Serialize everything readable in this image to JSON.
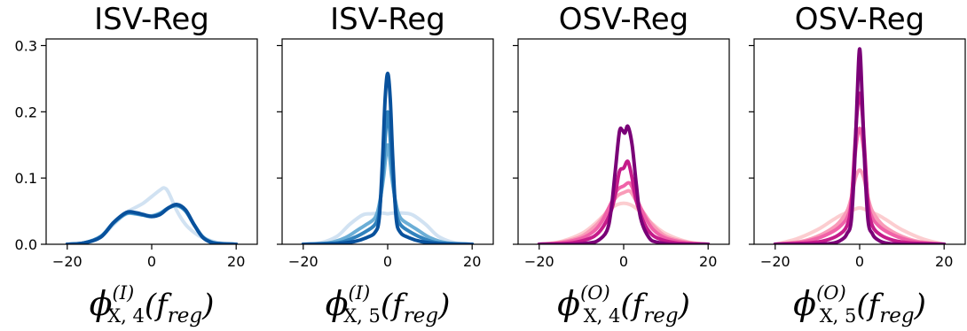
{
  "chart_data": [
    {
      "type": "line",
      "title": "ISV-Reg",
      "xlabel": {
        "main": "ϕ",
        "sup": "(I)",
        "sub": "X, 4",
        "arg_open": "(f",
        "arg_sub": "reg",
        "arg_close": ")"
      },
      "xlim": [
        -25,
        25
      ],
      "ylim": [
        0,
        0.31
      ],
      "xticks": [
        -20,
        0,
        20
      ],
      "yticks": [
        0.0,
        0.1,
        0.2,
        0.3
      ],
      "ytick_labels": [
        "0.0",
        "0.1",
        "0.2",
        "0.3"
      ],
      "series": [
        {
          "color": "#c6dbef",
          "opacity": 0.8,
          "x": [
            -20,
            -16,
            -12,
            -9,
            -6,
            -4,
            -2,
            0,
            2,
            3,
            4,
            6,
            8,
            10,
            12,
            16,
            20
          ],
          "y": [
            0.0,
            0.002,
            0.012,
            0.03,
            0.048,
            0.055,
            0.062,
            0.072,
            0.082,
            0.085,
            0.078,
            0.05,
            0.03,
            0.018,
            0.01,
            0.002,
            0.0
          ]
        },
        {
          "color": "#6baed6",
          "opacity": 1,
          "x": [
            -20,
            -16,
            -12,
            -9,
            -6,
            -4,
            -2,
            0,
            2,
            4,
            6,
            8,
            10,
            12,
            14,
            16,
            20
          ],
          "y": [
            0.0,
            0.002,
            0.012,
            0.032,
            0.046,
            0.046,
            0.044,
            0.043,
            0.047,
            0.055,
            0.058,
            0.05,
            0.03,
            0.012,
            0.004,
            0.001,
            0.0
          ]
        },
        {
          "color": "#3182bd",
          "opacity": 1,
          "x": [
            -20,
            -16,
            -12,
            -9,
            -6,
            -4,
            -2,
            0,
            2,
            4,
            6,
            8,
            10,
            12,
            14,
            16,
            20
          ],
          "y": [
            0.0,
            0.002,
            0.012,
            0.033,
            0.047,
            0.047,
            0.044,
            0.042,
            0.046,
            0.055,
            0.059,
            0.051,
            0.03,
            0.011,
            0.003,
            0.001,
            0.0
          ]
        },
        {
          "color": "#08519c",
          "opacity": 1,
          "x": [
            -20,
            -16,
            -12,
            -9,
            -6,
            -4,
            -2,
            0,
            2,
            4,
            6,
            8,
            10,
            12,
            14,
            16,
            20
          ],
          "y": [
            0.0,
            0.002,
            0.011,
            0.033,
            0.048,
            0.048,
            0.045,
            0.042,
            0.045,
            0.055,
            0.06,
            0.052,
            0.03,
            0.011,
            0.003,
            0.001,
            0.0
          ]
        }
      ]
    },
    {
      "type": "line",
      "title": "ISV-Reg",
      "xlabel": {
        "main": "ϕ",
        "sup": "(I)",
        "sub": "X, 5",
        "arg_open": "(f",
        "arg_sub": "reg",
        "arg_close": ")"
      },
      "xlim": [
        -25,
        25
      ],
      "ylim": [
        0,
        0.31
      ],
      "xticks": [
        -20,
        0,
        20
      ],
      "yticks": [
        0.0,
        0.1,
        0.2,
        0.3
      ],
      "ytick_labels": [
        "",
        "",
        "",
        ""
      ],
      "series": [
        {
          "color": "#c6dbef",
          "opacity": 0.8,
          "x": [
            -20,
            -16,
            -12,
            -9,
            -6,
            -4,
            -2,
            -1,
            0,
            1,
            2,
            4,
            6,
            9,
            12,
            16,
            20
          ],
          "y": [
            0.0,
            0.002,
            0.012,
            0.03,
            0.044,
            0.046,
            0.047,
            0.047,
            0.046,
            0.047,
            0.047,
            0.047,
            0.044,
            0.03,
            0.012,
            0.002,
            0.0
          ]
        },
        {
          "color": "#6baed6",
          "opacity": 1,
          "x": [
            -20,
            -14,
            -10,
            -7,
            -5,
            -3,
            -2,
            -1,
            -0.5,
            0,
            0.5,
            1,
            2,
            3,
            5,
            7,
            10,
            14,
            20
          ],
          "y": [
            0.0,
            0.002,
            0.01,
            0.022,
            0.03,
            0.04,
            0.06,
            0.1,
            0.13,
            0.15,
            0.13,
            0.1,
            0.06,
            0.04,
            0.03,
            0.022,
            0.01,
            0.002,
            0.0
          ]
        },
        {
          "color": "#3182bd",
          "opacity": 1,
          "x": [
            -20,
            -12,
            -8,
            -5,
            -3,
            -2,
            -1,
            -0.5,
            0,
            0.5,
            1,
            2,
            3,
            5,
            8,
            12,
            20
          ],
          "y": [
            0.0,
            0.002,
            0.01,
            0.02,
            0.03,
            0.05,
            0.12,
            0.17,
            0.2,
            0.17,
            0.12,
            0.05,
            0.03,
            0.02,
            0.01,
            0.002,
            0.0
          ]
        },
        {
          "color": "#08519c",
          "opacity": 1,
          "x": [
            -20,
            -12,
            -8,
            -5,
            -3,
            -2,
            -1.2,
            -0.6,
            0,
            0.6,
            1.2,
            2,
            3,
            5,
            8,
            12,
            20
          ],
          "y": [
            0.0,
            0.001,
            0.004,
            0.01,
            0.018,
            0.04,
            0.13,
            0.22,
            0.258,
            0.22,
            0.13,
            0.04,
            0.018,
            0.01,
            0.004,
            0.001,
            0.0
          ]
        }
      ]
    },
    {
      "type": "line",
      "title": "OSV-Reg",
      "xlabel": {
        "main": "ϕ",
        "sup": "(O)",
        "sub": "X, 4",
        "arg_open": "(f",
        "arg_sub": "reg",
        "arg_close": ")"
      },
      "xlim": [
        -25,
        25
      ],
      "ylim": [
        0,
        0.31
      ],
      "xticks": [
        -20,
        0,
        20
      ],
      "yticks": [
        0.0,
        0.1,
        0.2,
        0.3
      ],
      "ytick_labels": [
        "",
        "",
        "",
        ""
      ],
      "series": [
        {
          "color": "#fbc4c8",
          "opacity": 0.85,
          "x": [
            -20,
            -15,
            -10,
            -7,
            -5,
            -3,
            -1.5,
            0,
            1.5,
            3,
            5,
            7,
            10,
            15,
            20
          ],
          "y": [
            0.0,
            0.004,
            0.016,
            0.03,
            0.042,
            0.054,
            0.06,
            0.062,
            0.06,
            0.054,
            0.042,
            0.03,
            0.016,
            0.004,
            0.0
          ]
        },
        {
          "color": "#f99bb8",
          "opacity": 1,
          "x": [
            -20,
            -15,
            -10,
            -7,
            -5,
            -3,
            -1.5,
            0,
            1.5,
            3,
            5,
            7,
            10,
            15,
            20
          ],
          "y": [
            0.0,
            0.003,
            0.012,
            0.026,
            0.04,
            0.06,
            0.073,
            0.078,
            0.08,
            0.065,
            0.045,
            0.028,
            0.012,
            0.003,
            0.0
          ]
        },
        {
          "color": "#f062a8",
          "opacity": 1,
          "x": [
            -20,
            -15,
            -10,
            -7,
            -5,
            -3,
            -1.5,
            0,
            1.5,
            3,
            5,
            7,
            10,
            15,
            20
          ],
          "y": [
            0.0,
            0.002,
            0.009,
            0.02,
            0.036,
            0.062,
            0.082,
            0.088,
            0.092,
            0.07,
            0.042,
            0.022,
            0.009,
            0.002,
            0.0
          ]
        },
        {
          "color": "#c51b8a",
          "opacity": 1,
          "x": [
            -20,
            -14,
            -10,
            -7,
            -5,
            -3,
            -2,
            -1,
            0,
            1,
            2,
            3,
            5,
            7,
            10,
            14,
            20
          ],
          "y": [
            0.0,
            0.001,
            0.005,
            0.012,
            0.025,
            0.05,
            0.075,
            0.11,
            0.115,
            0.125,
            0.1,
            0.065,
            0.03,
            0.013,
            0.005,
            0.001,
            0.0
          ]
        },
        {
          "color": "#7a0177",
          "opacity": 1,
          "x": [
            -20,
            -12,
            -8,
            -6,
            -4,
            -3,
            -2,
            -1,
            -0.3,
            0.3,
            1,
            2,
            3,
            4,
            6,
            8,
            12,
            20
          ],
          "y": [
            0.0,
            0.0,
            0.002,
            0.006,
            0.02,
            0.05,
            0.11,
            0.17,
            0.172,
            0.168,
            0.178,
            0.15,
            0.09,
            0.04,
            0.01,
            0.003,
            0.0,
            0.0
          ]
        }
      ]
    },
    {
      "type": "line",
      "title": "OSV-Reg",
      "xlabel": {
        "main": "ϕ",
        "sup": "(O)",
        "sub": "X, 5",
        "arg_open": "(f",
        "arg_sub": "reg",
        "arg_close": ")"
      },
      "xlim": [
        -25,
        25
      ],
      "ylim": [
        0,
        0.31
      ],
      "xticks": [
        -20,
        0,
        20
      ],
      "yticks": [
        0.0,
        0.1,
        0.2,
        0.3
      ],
      "ytick_labels": [
        "",
        "",
        "",
        ""
      ],
      "series": [
        {
          "color": "#fbc4c8",
          "opacity": 0.85,
          "x": [
            -20,
            -15,
            -10,
            -7,
            -5,
            -3,
            -1.5,
            0,
            1.5,
            3,
            5,
            7,
            10,
            15,
            20
          ],
          "y": [
            0.0,
            0.008,
            0.022,
            0.034,
            0.042,
            0.048,
            0.052,
            0.055,
            0.052,
            0.048,
            0.042,
            0.034,
            0.022,
            0.008,
            0.0
          ]
        },
        {
          "color": "#f99bb8",
          "opacity": 1,
          "x": [
            -20,
            -14,
            -10,
            -7,
            -5,
            -3,
            -2,
            -1,
            0,
            1,
            2,
            3,
            5,
            7,
            10,
            14,
            20
          ],
          "y": [
            0.0,
            0.004,
            0.012,
            0.022,
            0.032,
            0.05,
            0.07,
            0.1,
            0.112,
            0.1,
            0.07,
            0.05,
            0.032,
            0.022,
            0.012,
            0.004,
            0.0
          ]
        },
        {
          "color": "#f062a8",
          "opacity": 1,
          "x": [
            -20,
            -14,
            -10,
            -7,
            -5,
            -3,
            -2,
            -1,
            0,
            1,
            2,
            3,
            5,
            7,
            10,
            14,
            20
          ],
          "y": [
            0.0,
            0.003,
            0.009,
            0.017,
            0.025,
            0.04,
            0.065,
            0.14,
            0.175,
            0.14,
            0.065,
            0.04,
            0.025,
            0.017,
            0.009,
            0.003,
            0.0
          ]
        },
        {
          "color": "#c51b8a",
          "opacity": 1,
          "x": [
            -20,
            -12,
            -8,
            -5,
            -3,
            -2,
            -1.2,
            -0.6,
            0,
            0.6,
            1.2,
            2,
            3,
            5,
            8,
            12,
            20
          ],
          "y": [
            0.0,
            0.002,
            0.006,
            0.014,
            0.028,
            0.06,
            0.14,
            0.2,
            0.228,
            0.2,
            0.14,
            0.06,
            0.028,
            0.014,
            0.006,
            0.002,
            0.0
          ]
        },
        {
          "color": "#7a0177",
          "opacity": 1,
          "x": [
            -20,
            -10,
            -6,
            -4,
            -3,
            -2,
            -1.2,
            -0.6,
            0,
            0.6,
            1.2,
            2,
            3,
            4,
            6,
            10,
            20
          ],
          "y": [
            0.0,
            0.0,
            0.002,
            0.008,
            0.016,
            0.035,
            0.12,
            0.22,
            0.295,
            0.22,
            0.12,
            0.035,
            0.016,
            0.008,
            0.002,
            0.0,
            0.0
          ]
        }
      ]
    }
  ]
}
